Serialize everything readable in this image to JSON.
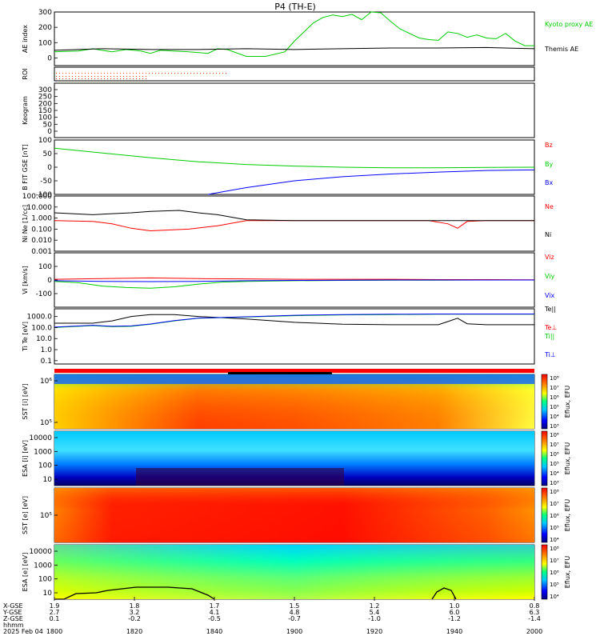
{
  "title": "P4  (TH-E)",
  "x_axis": {
    "tick_labels": [
      "1800",
      "1820",
      "1840",
      "1900",
      "1920",
      "1940",
      "2000"
    ],
    "x_gse": [
      "1.9",
      "1.8",
      "1.7",
      "1.5",
      "1.2",
      "1.0",
      "0.8"
    ],
    "y_gse": [
      "2.7",
      "3.2",
      "4.1",
      "4.8",
      "5.4",
      "6.0",
      "6.3"
    ],
    "z_gse": [
      "0.1",
      "-0.2",
      "-0.5",
      "-0.7",
      "-1.0",
      "-1.2",
      "-1.4"
    ],
    "row_labels": [
      "X-GSE",
      "Y-GSE",
      "Z-GSE",
      "hhmm",
      "2025 Feb 04"
    ]
  },
  "colorbar_label": "Eflux, EFU",
  "chart_data": [
    {
      "type": "line",
      "panel": "ae",
      "ylabel": "AE index",
      "yticks": [
        "300",
        "200",
        "100",
        "0"
      ],
      "ylim": [
        -50,
        300
      ],
      "series": [
        {
          "name": "Kyoto proxy AE",
          "color": "#00cc00",
          "x": [
            0,
            5,
            8,
            12,
            15,
            18,
            20,
            22,
            28,
            32,
            34,
            36,
            40,
            44,
            48,
            50,
            52,
            54,
            56,
            58,
            60,
            62,
            64,
            66,
            68,
            70,
            72,
            74,
            76,
            78,
            80,
            82,
            84,
            86,
            88,
            90,
            92,
            94,
            96,
            98,
            100
          ],
          "y": [
            40,
            45,
            60,
            40,
            55,
            45,
            30,
            50,
            40,
            30,
            60,
            55,
            10,
            10,
            40,
            110,
            170,
            230,
            265,
            280,
            270,
            285,
            250,
            300,
            295,
            240,
            190,
            160,
            130,
            120,
            115,
            170,
            160,
            135,
            150,
            130,
            125,
            160,
            110,
            80,
            80
          ]
        },
        {
          "name": "Themis AE",
          "color": "#000000",
          "x": [
            0,
            10,
            20,
            30,
            40,
            50,
            60,
            70,
            80,
            90,
            100
          ],
          "y": [
            50,
            60,
            55,
            55,
            60,
            55,
            60,
            65,
            65,
            68,
            60
          ]
        }
      ]
    },
    {
      "type": "line",
      "panel": "roi",
      "ylabel": "ROI",
      "series": [
        {
          "name": "",
          "color": "#ff0000"
        }
      ]
    },
    {
      "type": "heatmap",
      "panel": "keogram",
      "ylabel": "Keogram",
      "yticks": [
        "300",
        "250",
        "200",
        "150",
        "100",
        "50",
        "0"
      ]
    },
    {
      "type": "line",
      "panel": "b",
      "ylabel": "B FIT GSE [nT]",
      "yticks": [
        "100",
        "50",
        "0",
        "-50",
        "-100"
      ],
      "ylim": [
        -100,
        100
      ],
      "series": [
        {
          "name": "Bz",
          "color": "#ff0000",
          "x": [],
          "y": []
        },
        {
          "name": "By",
          "color": "#00cc00",
          "x": [
            0,
            10,
            20,
            30,
            40,
            50,
            60,
            70,
            80,
            90,
            100
          ],
          "y": [
            70,
            52,
            35,
            20,
            10,
            4,
            0,
            -2,
            -2,
            -1,
            0
          ]
        },
        {
          "name": "Bx",
          "color": "#0000ff",
          "x": [
            32,
            40,
            50,
            60,
            70,
            80,
            90,
            100
          ],
          "y": [
            -100,
            -75,
            -50,
            -35,
            -25,
            -18,
            -12,
            -10
          ]
        }
      ]
    },
    {
      "type": "line",
      "panel": "density",
      "ylabel": "Ni Ne [1/cc]",
      "yticks": [
        "100.000",
        "10.000",
        "1.000",
        "0.100",
        "0.010",
        "0.001"
      ],
      "ylim": [
        0.001,
        100
      ],
      "yscale": "log",
      "series": [
        {
          "name": "Ne",
          "color": "#ff0000",
          "x": [
            0,
            8,
            12,
            16,
            20,
            28,
            34,
            40,
            50,
            60,
            70,
            78,
            82,
            84,
            86,
            90,
            100
          ],
          "y": [
            0.6,
            0.5,
            0.3,
            0.12,
            0.07,
            0.1,
            0.2,
            0.6,
            0.6,
            0.6,
            0.6,
            0.6,
            0.3,
            0.12,
            0.5,
            0.6,
            0.6
          ]
        },
        {
          "name": "Ni",
          "color": "#000000",
          "x": [
            0,
            8,
            12,
            16,
            20,
            26,
            30,
            34,
            38,
            40,
            50,
            60,
            70,
            80,
            90,
            100
          ],
          "y": [
            3,
            2,
            2.5,
            3,
            4,
            5,
            3,
            2,
            1,
            0.7,
            0.6,
            0.6,
            0.6,
            0.6,
            0.6,
            0.6
          ]
        }
      ]
    },
    {
      "type": "line",
      "panel": "velocity",
      "ylabel": "Vi [km/s]",
      "yticks": [
        "100",
        "0",
        "-100"
      ],
      "ylim": [
        -200,
        200
      ],
      "series": [
        {
          "name": "Viz",
          "color": "#ff0000",
          "x": [
            0,
            10,
            20,
            30,
            40,
            50,
            60,
            70,
            80,
            90,
            100
          ],
          "y": [
            5,
            10,
            15,
            10,
            8,
            5,
            5,
            5,
            3,
            3,
            2
          ]
        },
        {
          "name": "Viy",
          "color": "#00cc00",
          "x": [
            0,
            5,
            10,
            15,
            20,
            25,
            30,
            35,
            40,
            50,
            60,
            70,
            80,
            90,
            100
          ],
          "y": [
            -10,
            -20,
            -45,
            -55,
            -60,
            -50,
            -30,
            -15,
            -10,
            -5,
            -3,
            -2,
            -2,
            0,
            0
          ]
        },
        {
          "name": "Vix",
          "color": "#0000ff",
          "x": [
            0,
            10,
            20,
            30,
            40,
            50,
            60,
            70,
            80,
            90,
            100
          ],
          "y": [
            -5,
            -10,
            -12,
            -10,
            -5,
            -3,
            -2,
            0,
            0,
            0,
            0
          ]
        }
      ]
    },
    {
      "type": "line",
      "panel": "temperature",
      "ylabel": "Ti Te [eV]",
      "yticks": [
        "1000.0",
        "100.0",
        "10.0",
        "1.0",
        "0.1"
      ],
      "ylim": [
        0.05,
        5000
      ],
      "yscale": "log",
      "series": [
        {
          "name": "Te||",
          "color": "#000000",
          "x": [
            0,
            8,
            12,
            16,
            20,
            25,
            30,
            40,
            50,
            60,
            70,
            80,
            82,
            84,
            86,
            90,
            100
          ],
          "y": [
            250,
            250,
            400,
            1000,
            1500,
            1500,
            1000,
            600,
            300,
            200,
            180,
            180,
            350,
            700,
            220,
            180,
            180
          ]
        },
        {
          "name": "Te⊥",
          "color": "#ff0000",
          "x": [],
          "y": []
        },
        {
          "name": "Ti||",
          "color": "#00cc00",
          "x": [
            0,
            8,
            12,
            16,
            20,
            25,
            30,
            40,
            50,
            60,
            70,
            80,
            90,
            100
          ],
          "y": [
            100,
            150,
            120,
            130,
            200,
            400,
            700,
            900,
            1200,
            1400,
            1500,
            1600,
            1600,
            1600
          ]
        },
        {
          "name": "Ti⊥",
          "color": "#0000ff",
          "x": [
            0,
            8,
            12,
            16,
            20,
            25,
            30,
            40,
            50,
            60,
            70,
            80,
            90,
            100
          ],
          "y": [
            110,
            160,
            130,
            140,
            210,
            420,
            720,
            950,
            1300,
            1500,
            1600,
            1700,
            1700,
            1700
          ]
        }
      ]
    },
    {
      "type": "heatmap",
      "panel": "sst_i",
      "ylabel": "SST [i] [eV]",
      "yticks": [
        "10⁶",
        "10⁵"
      ],
      "colorbar_ticks": [
        "10⁸",
        "10⁷",
        "10⁶",
        "10⁵",
        "10⁴",
        "10³"
      ]
    },
    {
      "type": "heatmap",
      "panel": "esa_i",
      "ylabel": "ESA [i] [eV]",
      "yticks": [
        "10000",
        "1000",
        "100",
        "10"
      ],
      "colorbar_ticks": [
        "10⁸",
        "10⁷",
        "10⁶",
        "10⁵",
        "10⁴",
        "10³"
      ]
    },
    {
      "type": "heatmap",
      "panel": "sst_e",
      "ylabel": "SST [e] [eV]",
      "yticks": [
        "10⁵"
      ],
      "colorbar_ticks": [
        "10⁸",
        "10⁷",
        "10⁶",
        "10⁵",
        "10⁴"
      ]
    },
    {
      "type": "heatmap",
      "panel": "esa_e",
      "ylabel": "ESA [e] [eV]",
      "yticks": [
        "10000",
        "1000",
        "100",
        "10"
      ],
      "colorbar_ticks": [
        "10⁸",
        "10⁷",
        "10⁶",
        "10⁵",
        "10⁴"
      ]
    }
  ]
}
